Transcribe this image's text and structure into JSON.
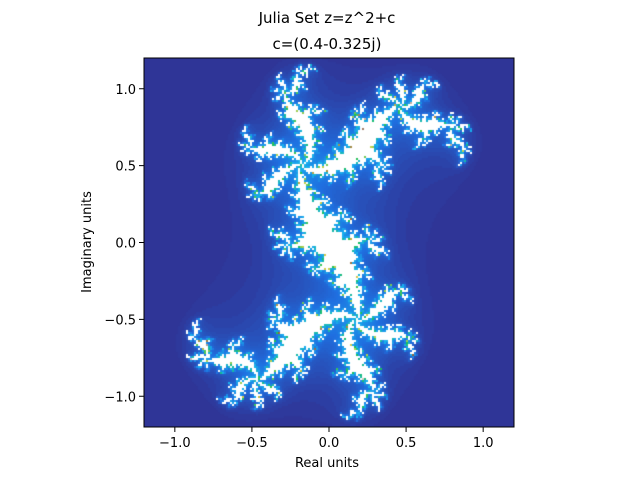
{
  "chart_data": {
    "type": "heatmap",
    "suptitle": "Julia Set z=z^2+c",
    "title": "c=(0.4-0.325j)",
    "xlabel": "Real units",
    "ylabel": "Imaginary units",
    "xlim": [
      -1.2,
      1.2
    ],
    "ylim": [
      -1.2,
      1.2
    ],
    "xticks": [
      -1.0,
      -0.5,
      0.0,
      0.5,
      1.0
    ],
    "xtick_labels": [
      "−1.0",
      "−0.5",
      "0.0",
      "0.5",
      "1.0"
    ],
    "yticks": [
      -1.0,
      -0.5,
      0.0,
      0.5,
      1.0
    ],
    "ytick_labels": [
      "−1.0",
      "−0.5",
      "0.0",
      "0.5",
      "1.0"
    ],
    "c_real": 0.4,
    "c_imag": -0.325,
    "grid": false,
    "colormap": "terrain-like",
    "colors": {
      "outer": "#2f3597",
      "mid": "#1f6fe0",
      "inner": "#18b0ee",
      "edge_green": "#19c05a",
      "edge_yellow": "#d8d24a",
      "edge_brown": "#8a5a3c",
      "interior": "#ffffff"
    }
  }
}
